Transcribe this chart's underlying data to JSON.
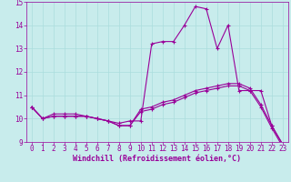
{
  "xlabel": "Windchill (Refroidissement éolien,°C)",
  "xlim": [
    -0.5,
    23.5
  ],
  "ylim": [
    9,
    15
  ],
  "yticks": [
    9,
    10,
    11,
    12,
    13,
    14,
    15
  ],
  "xticks": [
    0,
    1,
    2,
    3,
    4,
    5,
    6,
    7,
    8,
    9,
    10,
    11,
    12,
    13,
    14,
    15,
    16,
    17,
    18,
    19,
    20,
    21,
    22,
    23
  ],
  "bg_color": "#c8ecec",
  "line_color": "#990099",
  "grid_color": "#aadddd",
  "series1": [
    10.5,
    10.0,
    10.2,
    10.2,
    10.2,
    10.1,
    10.0,
    9.9,
    9.8,
    9.9,
    9.9,
    13.2,
    13.3,
    13.3,
    14.0,
    14.8,
    14.7,
    13.0,
    14.0,
    11.2,
    11.2,
    11.2,
    9.7,
    8.9
  ],
  "series2": [
    10.5,
    10.0,
    10.1,
    10.1,
    10.1,
    10.1,
    10.0,
    9.9,
    9.7,
    9.7,
    10.4,
    10.5,
    10.7,
    10.8,
    11.0,
    11.2,
    11.3,
    11.4,
    11.5,
    11.5,
    11.3,
    10.6,
    9.7,
    8.9
  ],
  "series3": [
    10.5,
    10.0,
    10.1,
    10.1,
    10.1,
    10.1,
    10.0,
    9.9,
    9.7,
    9.7,
    10.3,
    10.4,
    10.6,
    10.7,
    10.9,
    11.1,
    11.2,
    11.3,
    11.4,
    11.4,
    11.2,
    10.5,
    9.6,
    8.8
  ],
  "tick_fontsize": 5.5,
  "xlabel_fontsize": 6.0,
  "marker_size": 3.0,
  "line_width": 0.8
}
